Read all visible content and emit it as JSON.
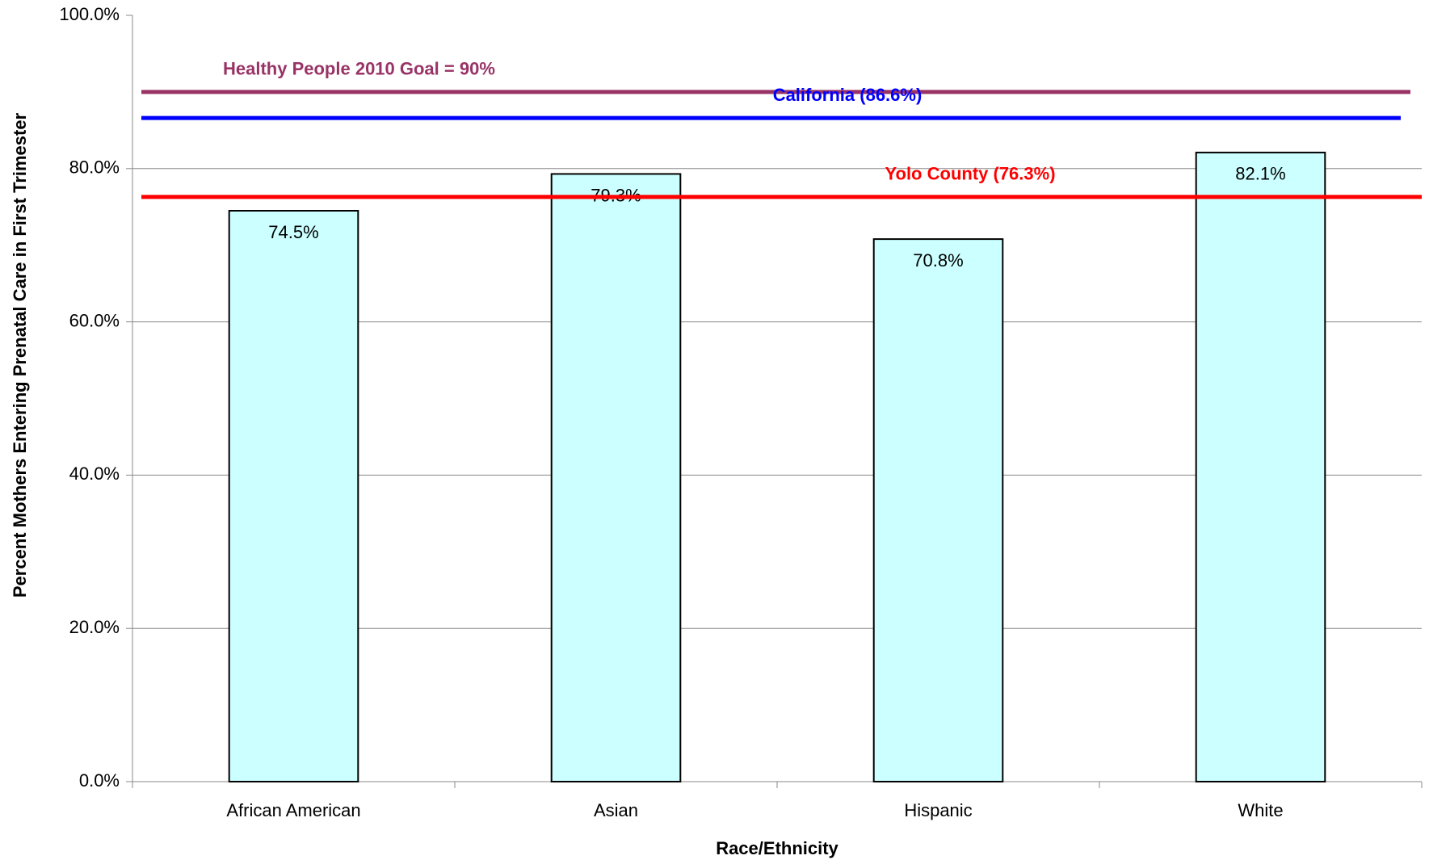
{
  "chart_data": {
    "type": "bar",
    "x_label": "Race/Ethnicity",
    "y_label": "Percent Mothers Entering Prenatal Care in First Trimester",
    "categories": [
      "African American",
      "Asian",
      "Hispanic",
      "White"
    ],
    "values": [
      74.5,
      79.3,
      70.8,
      82.1
    ],
    "value_labels": [
      "74.5%",
      "79.3%",
      "70.8%",
      "82.1%"
    ],
    "color": "#ccffff",
    "ylim": [
      0,
      100
    ],
    "yticks": [
      {
        "value": 0,
        "label": "0.0%"
      },
      {
        "value": 20,
        "label": "20.0%"
      },
      {
        "value": 40,
        "label": "40.0%"
      },
      {
        "value": 60,
        "label": "60.0%"
      },
      {
        "value": 80,
        "label": "80.0%"
      },
      {
        "value": 100,
        "label": "100.0%"
      }
    ],
    "grid": true,
    "reference_lines": [
      {
        "label": "Healthy People 2010 Goal = 90%",
        "value": 90,
        "color": "#993366"
      },
      {
        "label": "California (86.6%)",
        "value": 86.6,
        "color": "#0000ff"
      },
      {
        "label": "Yolo County (76.3%)",
        "value": 76.3,
        "color": "#ff0000"
      }
    ]
  }
}
